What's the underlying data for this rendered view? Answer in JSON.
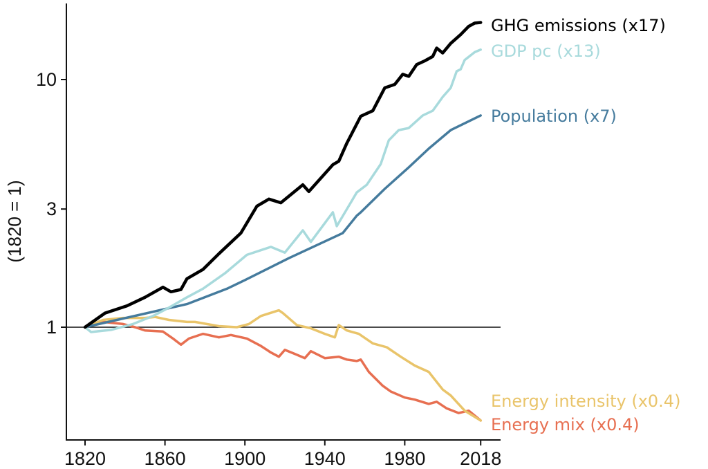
{
  "chart_data": {
    "type": "line",
    "title": "",
    "xlabel": "",
    "ylabel": "(1820 = 1)",
    "yscale": "log",
    "xlim": [
      1810,
      2028
    ],
    "ylim": [
      0.35,
      20
    ],
    "xticks": [
      1820,
      1860,
      1900,
      1940,
      1980,
      2018
    ],
    "xtick_labels": [
      "1820",
      "1860",
      "1900",
      "1940",
      "1980",
      "2018"
    ],
    "yticks": [
      1,
      3,
      10
    ],
    "ytick_labels": [
      "1",
      "3",
      "10"
    ],
    "reference_line": 1,
    "grid": false,
    "legend": "direct labels at line ends (right)",
    "series": [
      {
        "name": "GHG emissions",
        "label": "GHG emissions (x17)",
        "color": "#000000",
        "x": [
          1820,
          1830,
          1841,
          1850,
          1859,
          1863,
          1868,
          1871,
          1879,
          1887,
          1898,
          1906,
          1912,
          1918,
          1929,
          1932,
          1944,
          1947,
          1951,
          1958,
          1964,
          1970,
          1975,
          1979,
          1982,
          1986,
          1990,
          1994,
          1996,
          1999,
          2003,
          2008,
          2012,
          2015,
          2018
        ],
        "values": [
          1.0,
          1.14,
          1.22,
          1.32,
          1.45,
          1.39,
          1.42,
          1.57,
          1.71,
          1.98,
          2.4,
          3.08,
          3.29,
          3.18,
          3.76,
          3.53,
          4.53,
          4.68,
          5.53,
          7.11,
          7.48,
          9.26,
          9.56,
          10.5,
          10.3,
          11.5,
          11.9,
          12.4,
          13.4,
          12.8,
          14.0,
          15.2,
          16.4,
          16.9,
          17.0
        ]
      },
      {
        "name": "GDP pc",
        "label": "GDP pc (x13)",
        "color": "#a8dadc",
        "x": [
          1820,
          1823,
          1833,
          1844,
          1854,
          1862,
          1871,
          1879,
          1890,
          1901,
          1913,
          1920,
          1929,
          1933,
          1944,
          1946,
          1956,
          1961,
          1968,
          1972,
          1977,
          1982,
          1989,
          1994,
          1999,
          2003,
          2006,
          2008,
          2010,
          2015,
          2018
        ],
        "values": [
          1.0,
          0.956,
          0.975,
          1.03,
          1.11,
          1.2,
          1.32,
          1.43,
          1.65,
          1.96,
          2.11,
          2.0,
          2.46,
          2.21,
          2.91,
          2.56,
          3.5,
          3.76,
          4.56,
          5.68,
          6.25,
          6.37,
          7.16,
          7.48,
          8.51,
          9.26,
          10.8,
          11.0,
          12.0,
          12.9,
          13.2
        ]
      },
      {
        "name": "Population",
        "label": "Population (x7)",
        "color": "#457b9d",
        "x": [
          1820,
          1871,
          1891,
          1900,
          1922,
          1949,
          1956,
          1958,
          1970,
          1982,
          1992,
          2003,
          2018
        ],
        "values": [
          1.0,
          1.24,
          1.43,
          1.55,
          1.9,
          2.4,
          2.82,
          2.91,
          3.62,
          4.42,
          5.26,
          6.25,
          7.16
        ]
      },
      {
        "name": "Energy intensity",
        "label": "Energy intensity (x0.4)",
        "color": "#e9c46a",
        "x": [
          1820,
          1829,
          1839,
          1850,
          1855,
          1862,
          1871,
          1875,
          1887,
          1896,
          1902,
          1908,
          1917,
          1919,
          1926,
          1933,
          1940,
          1945,
          1947,
          1951,
          1957,
          1964,
          1971,
          1978,
          1985,
          1992,
          1999,
          2003,
          2010,
          2018
        ],
        "values": [
          1.0,
          1.07,
          1.09,
          1.09,
          1.1,
          1.07,
          1.05,
          1.05,
          1.01,
          1.0,
          1.03,
          1.11,
          1.17,
          1.14,
          1.02,
          0.99,
          0.94,
          0.91,
          1.02,
          0.97,
          0.94,
          0.86,
          0.83,
          0.76,
          0.7,
          0.66,
          0.56,
          0.53,
          0.46,
          0.42
        ]
      },
      {
        "name": "Energy mix",
        "label": "Energy mix (x0.4)",
        "color": "#e76f51",
        "x": [
          1820,
          1829,
          1839,
          1845,
          1850,
          1859,
          1864,
          1868,
          1872,
          1879,
          1887,
          1893,
          1901,
          1908,
          1913,
          1917,
          1920,
          1925,
          1930,
          1933,
          1940,
          1947,
          1951,
          1956,
          1958,
          1962,
          1969,
          1973,
          1980,
          1985,
          1992,
          1996,
          2001,
          2007,
          2012,
          2018
        ],
        "values": [
          1.0,
          1.05,
          1.03,
          1.0,
          0.97,
          0.96,
          0.9,
          0.85,
          0.9,
          0.94,
          0.91,
          0.93,
          0.9,
          0.84,
          0.79,
          0.76,
          0.81,
          0.78,
          0.75,
          0.8,
          0.75,
          0.76,
          0.74,
          0.73,
          0.74,
          0.66,
          0.58,
          0.55,
          0.52,
          0.51,
          0.49,
          0.5,
          0.47,
          0.45,
          0.46,
          0.42
        ]
      }
    ]
  }
}
